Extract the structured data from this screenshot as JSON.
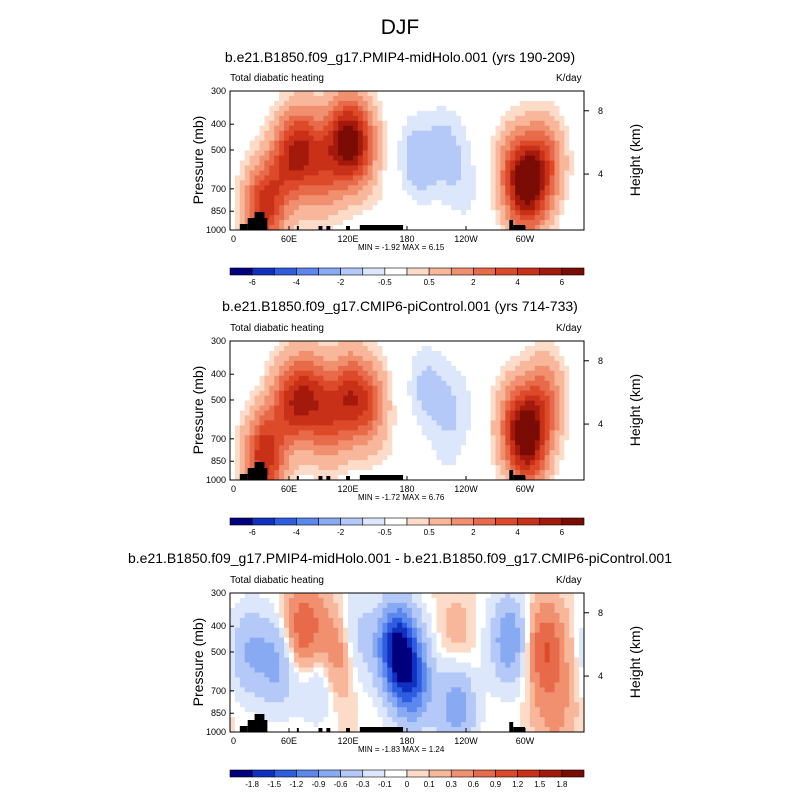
{
  "figure_title": "DJF",
  "chart_data": [
    {
      "type": "heatmap",
      "title": "b.e21.B1850.f09_g17.PMIP4-midHolo.001 (yrs 190-209)",
      "subtitle_left": "Total diabatic heating",
      "subtitle_right": "K/day",
      "xlabel": "",
      "ylabel": "Pressure (mb)",
      "right_ylabel": "Height (km)",
      "x_ticks": [
        "0",
        "60E",
        "120E",
        "180",
        "120W",
        "60W"
      ],
      "y_ticks": [
        "300",
        "400",
        "500",
        "700",
        "850",
        "1000"
      ],
      "right_ticks": [
        "8",
        "4"
      ],
      "stats": "MIN =  -1.92  MAX =   6.15",
      "colorbar_labels": [
        "-6",
        "-4",
        "-2",
        "-0.5",
        "0.5",
        "2",
        "4",
        "6"
      ],
      "colorbar_colors": [
        "#00007f",
        "#1030c0",
        "#2e5de0",
        "#5b87ee",
        "#88aaf3",
        "#b4c9f7",
        "#dde7fb",
        "#ffffff",
        "#fcdcc9",
        "#f8b79a",
        "#f0906f",
        "#e76a4a",
        "#dd4a2a",
        "#c93018",
        "#a31a0c",
        "#7a0b05"
      ],
      "features": [
        {
          "lon": 35,
          "p": 820,
          "value": 5.5
        },
        {
          "lon": 60,
          "p": 550,
          "value": 4.0
        },
        {
          "lon": 75,
          "p": 480,
          "value": 3.5
        },
        {
          "lon": 95,
          "p": 600,
          "value": 3.0
        },
        {
          "lon": 115,
          "p": 450,
          "value": 4.5
        },
        {
          "lon": 130,
          "p": 480,
          "value": 4.5
        },
        {
          "lon": 190,
          "p": 550,
          "value": -1.5
        },
        {
          "lon": 220,
          "p": 500,
          "value": -1.2
        },
        {
          "lon": 240,
          "p": 700,
          "value": -0.6
        },
        {
          "lon": 290,
          "p": 600,
          "value": 3.0
        },
        {
          "lon": 303,
          "p": 700,
          "value": 6.0
        },
        {
          "lon": 320,
          "p": 550,
          "value": 3.5
        },
        {
          "lon": 165,
          "p": 880,
          "value": 0.4
        }
      ]
    },
    {
      "type": "heatmap",
      "title": "b.e21.B1850.f09_g17.CMIP6-piControl.001 (yrs 714-733)",
      "subtitle_left": "Total diabatic heating",
      "subtitle_right": "K/day",
      "xlabel": "",
      "ylabel": "Pressure (mb)",
      "right_ylabel": "Height (km)",
      "x_ticks": [
        "0",
        "60E",
        "120E",
        "180",
        "120W",
        "60W"
      ],
      "y_ticks": [
        "300",
        "400",
        "500",
        "700",
        "850",
        "1000"
      ],
      "right_ticks": [
        "8",
        "4"
      ],
      "stats": "MIN =  -1.72  MAX =   6.76",
      "colorbar_labels": [
        "-6",
        "-4",
        "-2",
        "-0.5",
        "0.5",
        "2",
        "4",
        "6"
      ],
      "colorbar_colors": [
        "#00007f",
        "#1030c0",
        "#2e5de0",
        "#5b87ee",
        "#88aaf3",
        "#b4c9f7",
        "#dde7fb",
        "#ffffff",
        "#fcdcc9",
        "#f8b79a",
        "#f0906f",
        "#e76a4a",
        "#dd4a2a",
        "#c93018",
        "#a31a0c",
        "#7a0b05"
      ],
      "features": [
        {
          "lon": 35,
          "p": 820,
          "value": 5.8
        },
        {
          "lon": 60,
          "p": 520,
          "value": 4.0
        },
        {
          "lon": 80,
          "p": 480,
          "value": 4.2
        },
        {
          "lon": 100,
          "p": 600,
          "value": 3.0
        },
        {
          "lon": 120,
          "p": 480,
          "value": 4.0
        },
        {
          "lon": 140,
          "p": 520,
          "value": 3.5
        },
        {
          "lon": 200,
          "p": 450,
          "value": -1.2
        },
        {
          "lon": 230,
          "p": 520,
          "value": -0.8
        },
        {
          "lon": 220,
          "p": 760,
          "value": -0.5
        },
        {
          "lon": 290,
          "p": 600,
          "value": 3.0
        },
        {
          "lon": 303,
          "p": 720,
          "value": 6.5
        },
        {
          "lon": 320,
          "p": 500,
          "value": 3.2
        },
        {
          "lon": 170,
          "p": 880,
          "value": 0.3
        }
      ]
    },
    {
      "type": "heatmap",
      "title": "b.e21.B1850.f09_g17.PMIP4-midHolo.001 - b.e21.B1850.f09_g17.CMIP6-piControl.001",
      "subtitle_left": "Total diabatic heating",
      "subtitle_right": "K/day",
      "xlabel": "",
      "ylabel": "Pressure (mb)",
      "right_ylabel": "Height (km)",
      "x_ticks": [
        "0",
        "60E",
        "120E",
        "180",
        "120W",
        "60W"
      ],
      "y_ticks": [
        "300",
        "400",
        "500",
        "700",
        "850",
        "1000"
      ],
      "right_ticks": [
        "8",
        "4"
      ],
      "stats": "MIN =  -1.83  MAX =   1.24",
      "colorbar_labels": [
        "-1.8",
        "-1.5",
        "-1.2",
        "-0.9",
        "-0.6",
        "-0.3",
        "-0.1",
        "0",
        "0.1",
        "0.3",
        "0.6",
        "0.9",
        "1.2",
        "1.5",
        "1.8"
      ],
      "colorbar_colors": [
        "#00007f",
        "#1030c0",
        "#2e5de0",
        "#5b87ee",
        "#88aaf3",
        "#b4c9f7",
        "#dde7fb",
        "#ffffff",
        "#fcdcc9",
        "#f8b79a",
        "#f0906f",
        "#e76a4a",
        "#dd4a2a",
        "#c93018",
        "#a31a0c",
        "#7a0b05"
      ],
      "features": [
        {
          "lon": 20,
          "p": 500,
          "value": -0.6
        },
        {
          "lon": 50,
          "p": 550,
          "value": -0.7
        },
        {
          "lon": 75,
          "p": 420,
          "value": 1.0
        },
        {
          "lon": 90,
          "p": 600,
          "value": -0.5
        },
        {
          "lon": 110,
          "p": 500,
          "value": 0.8
        },
        {
          "lon": 125,
          "p": 450,
          "value": -0.6
        },
        {
          "lon": 170,
          "p": 480,
          "value": -1.8
        },
        {
          "lon": 185,
          "p": 650,
          "value": -1.2
        },
        {
          "lon": 230,
          "p": 800,
          "value": -0.8
        },
        {
          "lon": 230,
          "p": 450,
          "value": 0.2
        },
        {
          "lon": 285,
          "p": 450,
          "value": -0.9
        },
        {
          "lon": 320,
          "p": 480,
          "value": 0.9
        },
        {
          "lon": 330,
          "p": 800,
          "value": 0.4
        }
      ]
    }
  ]
}
